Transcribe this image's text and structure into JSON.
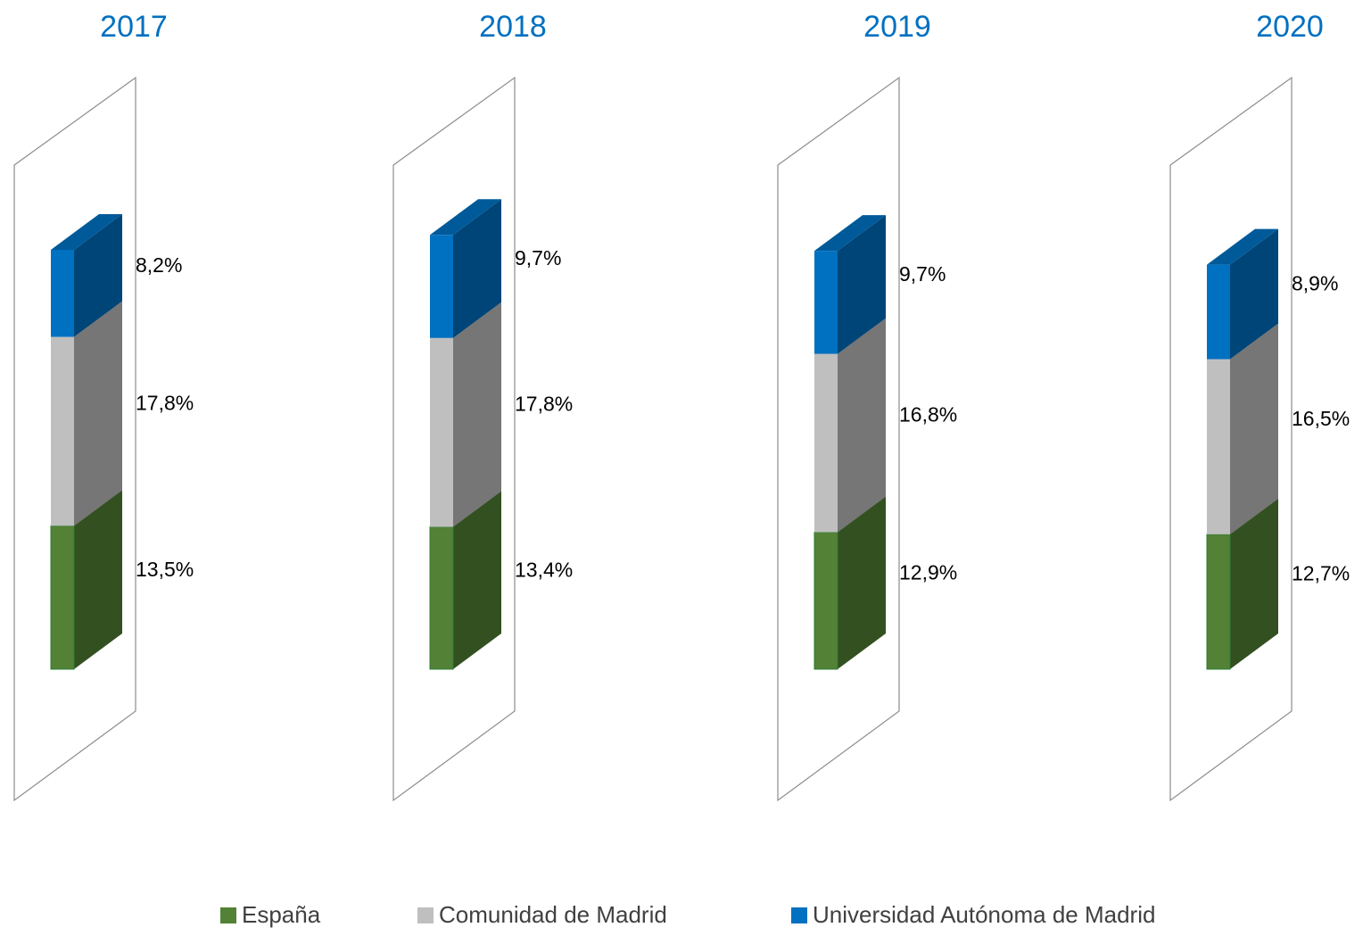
{
  "chart_data": {
    "type": "bar",
    "stacked": true,
    "categories": [
      "2017",
      "2018",
      "2019",
      "2020"
    ],
    "series": [
      {
        "name": "España",
        "color": "#538135",
        "values": [
          13.5,
          13.4,
          12.9,
          12.7
        ],
        "value_labels": [
          "13,5%",
          "13,4%",
          "12,9%",
          "12,7%"
        ]
      },
      {
        "name": "Comunidad de Madrid",
        "color": "#bfbfbf",
        "values": [
          17.8,
          17.8,
          16.8,
          16.5
        ],
        "value_labels": [
          "17,8%",
          "17,8%",
          "16,8%",
          "16,5%"
        ]
      },
      {
        "name": "Universidad Autónoma de Madrid",
        "color": "#0070c0",
        "values": [
          8.2,
          9.7,
          9.7,
          8.9
        ],
        "value_labels": [
          "8,2%",
          "9,7%",
          "9,7%",
          "8,9%"
        ]
      }
    ],
    "legend": "bottom"
  }
}
